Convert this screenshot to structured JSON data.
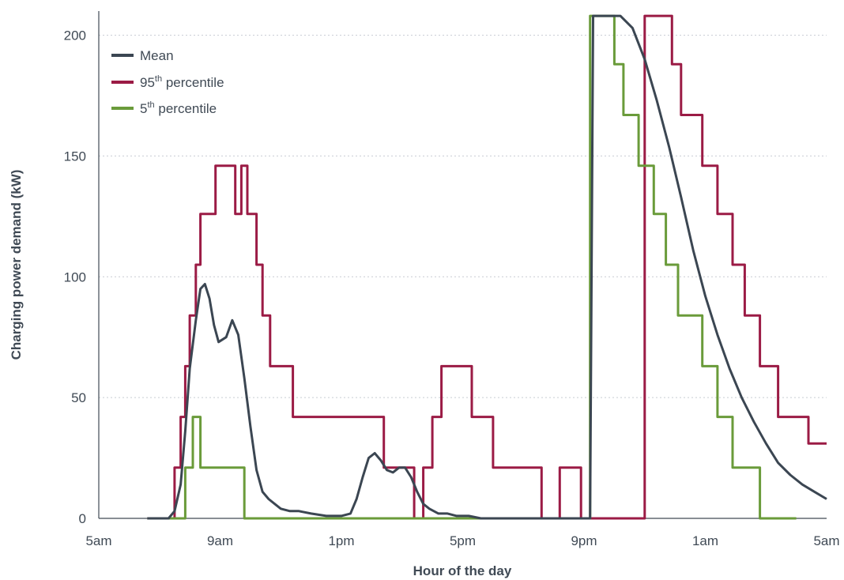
{
  "chart_data": {
    "type": "line",
    "xlabel": "Hour of the day",
    "ylabel": "Charging power demand (kW)",
    "x_unit": "hours since 5am",
    "xlim": [
      0,
      24
    ],
    "ylim": [
      0,
      210
    ],
    "x_ticks": [
      {
        "value": 0,
        "label": "5am"
      },
      {
        "value": 4,
        "label": "9am"
      },
      {
        "value": 8,
        "label": "1pm"
      },
      {
        "value": 12,
        "label": "5pm"
      },
      {
        "value": 16,
        "label": "9pm"
      },
      {
        "value": 20,
        "label": "1am"
      },
      {
        "value": 24,
        "label": "5am"
      }
    ],
    "y_ticks": [
      0,
      50,
      100,
      150,
      200
    ],
    "grid": "horizontal dotted",
    "legend_position": "top-left",
    "series": [
      {
        "name": "95th percentile",
        "label_main": "95",
        "label_sup": "th",
        "label_rest": " percentile",
        "color": "#9b1b45",
        "x": [
          1.6,
          2.5,
          2.5,
          2.7,
          2.7,
          2.85,
          2.85,
          3.0,
          3.0,
          3.2,
          3.2,
          3.35,
          3.35,
          3.85,
          3.85,
          4.5,
          4.5,
          4.7,
          4.7,
          4.9,
          4.9,
          5.2,
          5.2,
          5.4,
          5.4,
          5.65,
          5.65,
          6.4,
          6.4,
          9.4,
          9.4,
          10.4,
          10.4,
          10.7,
          10.7,
          11.0,
          11.0,
          11.3,
          11.3,
          12.3,
          12.3,
          13.0,
          13.0,
          14.6,
          14.6,
          15.2,
          15.2,
          15.9,
          15.9,
          16.2,
          16.2,
          16.5,
          16.5,
          18.0,
          18.0,
          18.9,
          18.9,
          19.2,
          19.2,
          19.9,
          19.9,
          20.4,
          20.4,
          20.9,
          20.9,
          21.3,
          21.3,
          21.8,
          21.8,
          22.4,
          22.4,
          22.9,
          22.9,
          23.4,
          23.4,
          24.0,
          24.0
        ],
        "y": [
          0,
          0,
          21,
          21,
          42,
          42,
          63,
          63,
          84,
          84,
          105,
          105,
          126,
          126,
          146,
          146,
          126,
          126,
          146,
          146,
          126,
          126,
          105,
          105,
          84,
          84,
          63,
          63,
          42,
          42,
          21,
          21,
          0,
          0,
          21,
          21,
          42,
          42,
          63,
          63,
          42,
          42,
          21,
          21,
          0,
          0,
          21,
          21,
          0,
          0,
          0,
          0,
          0,
          0,
          208,
          208,
          188,
          188,
          167,
          167,
          146,
          146,
          126,
          126,
          105,
          105,
          84,
          84,
          63,
          63,
          42,
          42,
          42,
          42,
          31,
          31,
          31
        ]
      },
      {
        "name": "5th percentile",
        "label_main": "5",
        "label_sup": "th",
        "label_rest": " percentile",
        "color": "#6a9b3a",
        "x": [
          1.6,
          2.85,
          2.85,
          3.1,
          3.1,
          3.35,
          3.35,
          3.9,
          3.9,
          4.35,
          4.35,
          4.8,
          4.8,
          5.2,
          5.2,
          5.8,
          15.2,
          16.2,
          16.2,
          17.0,
          17.0,
          17.3,
          17.3,
          17.8,
          17.8,
          18.3,
          18.3,
          18.7,
          18.7,
          19.1,
          19.1,
          19.9,
          19.9,
          20.4,
          20.4,
          20.9,
          20.9,
          21.3,
          21.3,
          21.8,
          21.8,
          22.5,
          22.5,
          23.0
        ],
        "y": [
          0,
          0,
          21,
          21,
          42,
          42,
          21,
          21,
          21,
          21,
          21,
          21,
          0,
          0,
          0,
          0,
          0,
          0,
          208,
          208,
          188,
          188,
          167,
          167,
          146,
          146,
          126,
          126,
          105,
          105,
          84,
          84,
          63,
          63,
          42,
          42,
          21,
          21,
          21,
          21,
          0,
          0,
          0,
          0
        ]
      },
      {
        "name": "Mean",
        "label_main": "Mean",
        "label_sup": "",
        "label_rest": "",
        "color": "#3b4652",
        "x": [
          1.6,
          2.3,
          2.5,
          2.7,
          2.85,
          3.0,
          3.2,
          3.35,
          3.5,
          3.65,
          3.8,
          3.95,
          4.2,
          4.4,
          4.6,
          4.8,
          5.0,
          5.2,
          5.4,
          5.6,
          5.8,
          6.0,
          6.3,
          6.6,
          7.0,
          7.5,
          8.0,
          8.3,
          8.5,
          8.7,
          8.9,
          9.1,
          9.3,
          9.5,
          9.7,
          9.9,
          10.1,
          10.3,
          10.5,
          10.7,
          10.9,
          11.2,
          11.5,
          11.8,
          12.2,
          12.6,
          13.0,
          13.5,
          14.0,
          15.0,
          16.2,
          16.3,
          16.5,
          16.8,
          17.2,
          17.6,
          18.0,
          18.4,
          18.8,
          19.2,
          19.6,
          20.0,
          20.4,
          20.8,
          21.2,
          21.6,
          22.0,
          22.4,
          22.8,
          23.2,
          23.6,
          24.0
        ],
        "y": [
          0,
          0,
          3,
          14,
          36,
          62,
          82,
          95,
          97,
          91,
          80,
          73,
          75,
          82,
          76,
          58,
          38,
          20,
          11,
          8,
          6,
          4,
          3,
          3,
          2,
          1,
          1,
          2,
          8,
          17,
          25,
          27,
          24,
          20,
          19,
          21,
          21,
          17,
          11,
          6,
          4,
          2,
          2,
          1,
          1,
          0,
          0,
          0,
          0,
          0,
          0,
          208,
          208,
          208,
          208,
          203,
          190,
          173,
          154,
          133,
          111,
          92,
          76,
          62,
          50,
          40,
          31,
          23,
          18,
          14,
          11,
          8
        ]
      }
    ],
    "legend_order": [
      "Mean",
      "95th percentile",
      "5th percentile"
    ]
  }
}
